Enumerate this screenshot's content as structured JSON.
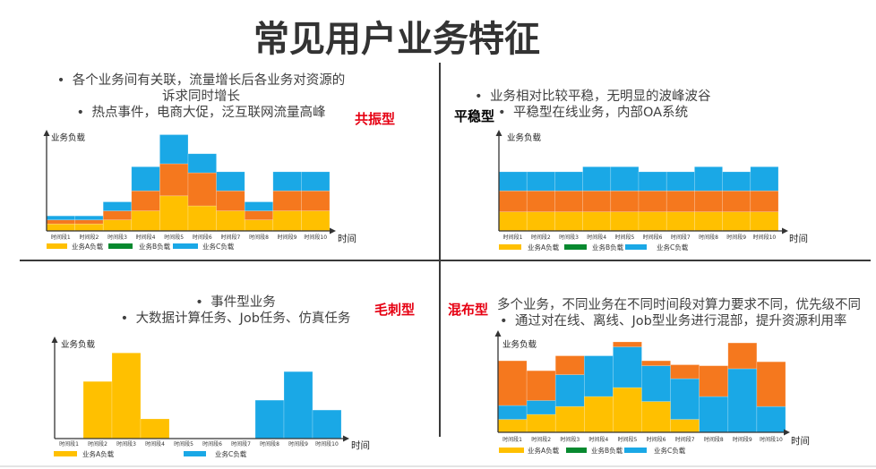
{
  "title": "常见用户业务特征",
  "quadrants": [
    {
      "label": "共振型",
      "label_color": "#E60012",
      "lines": [
        "各个业务间有关联，流量增长后各业务对资源的",
        "诉求同时增长",
        "热点事件，电商大促，泛互联网流量高峰"
      ]
    },
    {
      "label": "平稳型",
      "label_color": "#000000",
      "lines": [
        "业务相对比较平稳，无明显的波峰波谷",
        "平稳型在线业务，内部OA系统"
      ]
    },
    {
      "label": "毛刺型",
      "label_color": "#E60012",
      "lines": [
        "事件型业务",
        "大数据计算任务、Job任务、仿真任务"
      ]
    },
    {
      "label": "混布型",
      "label_color": "#E60012",
      "lines": [
        "多个业务，不同业务在不同时间段对算力要求不同，优先级不同",
        "通过对在线、离线、Job型业务进行混部，提升资源利用率"
      ]
    }
  ],
  "chart_data": [
    {
      "type": "bar",
      "stacked": true,
      "ylabel": "业务负载",
      "xlabel": "时间",
      "ylim": [
        0,
        100
      ],
      "categories": [
        "时间段1",
        "时间段2",
        "时间段3",
        "时间段4",
        "时间段5",
        "时间段6",
        "时间段7",
        "时间段8",
        "时间段9",
        "时间段10"
      ],
      "series": [
        {
          "name": "业务A负载",
          "bar_color": "#FFC000",
          "legend_color": "#FFC000",
          "values": [
            7,
            7,
            11,
            20,
            35,
            25,
            20,
            11,
            20,
            20
          ]
        },
        {
          "name": "业务B负载",
          "bar_color": "#F5781E",
          "legend_color": "#07892F",
          "values": [
            4,
            4,
            9,
            20,
            32,
            33,
            20,
            9,
            20,
            20
          ]
        },
        {
          "name": "业务C负载",
          "bar_color": "#1AA8E6",
          "legend_color": "#1AA8E6",
          "values": [
            4,
            4,
            9,
            24,
            29,
            19,
            19,
            9,
            19,
            19
          ]
        }
      ],
      "legend_order": [
        0,
        1,
        2
      ]
    },
    {
      "type": "bar",
      "stacked": true,
      "ylabel": "业务负载",
      "xlabel": "时间",
      "ylim": [
        0,
        100
      ],
      "categories": [
        "时间段1",
        "时间段2",
        "时间段3",
        "时间段4",
        "时间段5",
        "时间段6",
        "时间段7",
        "时间段8",
        "时间段9",
        "时间段10"
      ],
      "series": [
        {
          "name": "业务A负载",
          "bar_color": "#FFC000",
          "legend_color": "#FFC000",
          "values": [
            19,
            19,
            19,
            19,
            19,
            19,
            19,
            19,
            19,
            19
          ]
        },
        {
          "name": "业务B负载",
          "bar_color": "#F5781E",
          "legend_color": "#07892F",
          "values": [
            21,
            21,
            21,
            21,
            21,
            21,
            21,
            21,
            21,
            21
          ]
        },
        {
          "name": "业务C负载",
          "bar_color": "#1AA8E6",
          "legend_color": "#1AA8E6",
          "values": [
            19,
            19,
            19,
            24,
            24,
            19,
            19,
            24,
            19,
            24
          ]
        }
      ],
      "legend_order": [
        0,
        1,
        2
      ]
    },
    {
      "type": "bar",
      "stacked": true,
      "ylabel": "业务负载",
      "xlabel": "时间",
      "ylim": [
        0,
        100
      ],
      "categories": [
        "时间段1",
        "时间段2",
        "时间段3",
        "时间段4",
        "时间段5",
        "时间段6",
        "时间段7",
        "时间段8",
        "时间段9",
        "时间段10"
      ],
      "series": [
        {
          "name": "业务A负载",
          "bar_color": "#FFC000",
          "legend_color": "#FFC000",
          "values": [
            0,
            58,
            87,
            20,
            0,
            0,
            0,
            0,
            0,
            0
          ]
        },
        {
          "name": "业务C负载",
          "bar_color": "#1AA8E6",
          "legend_color": "#1AA8E6",
          "values": [
            0,
            0,
            0,
            0,
            0,
            0,
            0,
            39,
            68,
            29
          ]
        }
      ],
      "legend_order": [
        0,
        1
      ]
    },
    {
      "type": "bar",
      "stacked": true,
      "ylabel": "业务负载",
      "xlabel": "时间",
      "ylim": [
        0,
        100
      ],
      "categories": [
        "时间段1",
        "时间段2",
        "时间段3",
        "时间段4",
        "时间段5",
        "时间段6",
        "时间段7",
        "时间段8",
        "时间段9",
        "时间段10"
      ],
      "series": [
        {
          "name": "业务A负载",
          "bar_color": "#FFC000",
          "legend_color": "#FFC000",
          "values": [
            13,
            18,
            26,
            36,
            45,
            31,
            13,
            0,
            0,
            0
          ]
        },
        {
          "name": "业务C负载",
          "bar_color": "#1AA8E6",
          "legend_color": "#1AA8E6",
          "values": [
            14,
            14,
            32,
            41,
            41,
            36,
            41,
            36,
            64,
            26
          ]
        },
        {
          "name": "业务B负载",
          "bar_color": "#F5781E",
          "legend_color": "#07892F",
          "values": [
            45,
            30,
            19,
            0,
            5,
            5,
            14,
            31,
            26,
            45
          ]
        }
      ],
      "legend_order": [
        0,
        2,
        1
      ]
    }
  ]
}
